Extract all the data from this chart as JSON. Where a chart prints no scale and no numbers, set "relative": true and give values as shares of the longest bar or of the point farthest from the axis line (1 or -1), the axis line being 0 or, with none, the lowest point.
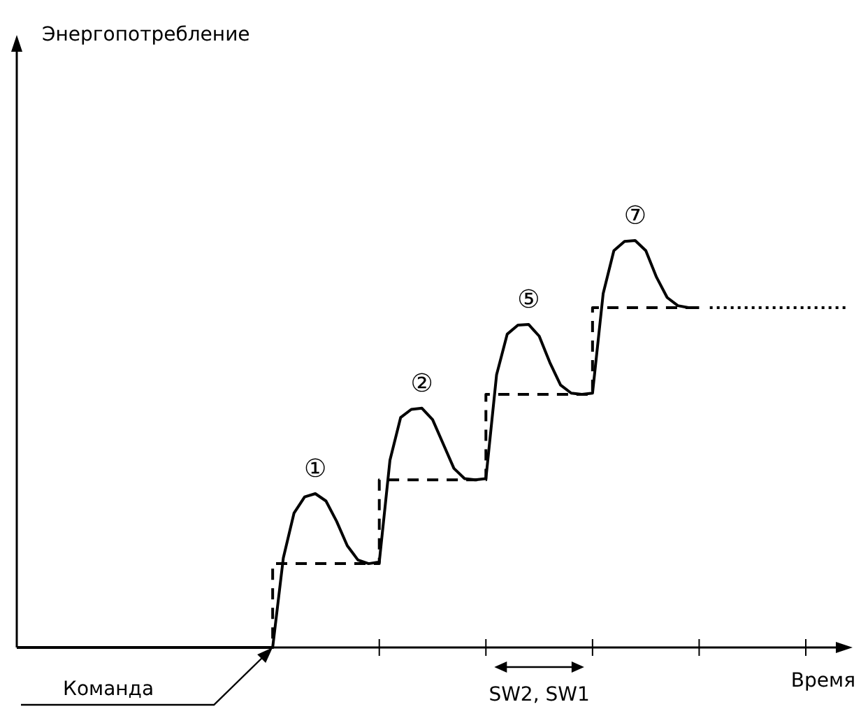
{
  "chart_data": {
    "type": "line",
    "relative": true,
    "xlabel": "Время",
    "categories": [
      null,
      null,
      null,
      null,
      null,
      null,
      null,
      null,
      null,
      null,
      null,
      null,
      null,
      null,
      null,
      null,
      null,
      null,
      null,
      null,
      null,
      null,
      null,
      null,
      null,
      null,
      null,
      null,
      null,
      null,
      null,
      null,
      null,
      null,
      null,
      null,
      null,
      null,
      null,
      null,
      null,
      null,
      null,
      null,
      null,
      null,
      null,
      null,
      null,
      null,
      null,
      null,
      null,
      null,
      null,
      null,
      null,
      null,
      null,
      null,
      null,
      null,
      null,
      null,
      null,
      null,
      null,
      null,
      null,
      null,
      null,
      null,
      null,
      null,
      null,
      null,
      null,
      null,
      null
    ],
    "series": [
      {
        "color": "#000000",
        "line_style": "solid",
        "values": [
          0,
          0,
          0,
          0,
          0,
          0,
          0,
          0,
          0,
          0,
          0,
          0,
          0,
          0,
          0,
          0,
          0,
          0,
          0,
          0,
          0,
          0,
          0,
          0,
          0,
          0.22,
          0.33,
          0.37,
          0.378,
          0.36,
          0.31,
          0.25,
          0.215,
          0.206,
          0.21,
          0.46,
          0.565,
          0.585,
          0.588,
          0.56,
          0.5,
          0.44,
          0.415,
          0.412,
          0.415,
          0.67,
          0.77,
          0.792,
          0.794,
          0.765,
          0.7,
          0.645,
          0.625,
          0.622,
          0.625,
          0.87,
          0.975,
          0.998,
          1,
          0.975,
          0.91,
          0.86,
          0.84,
          0.835,
          0.835,
          null,
          null,
          null,
          null,
          null,
          null,
          null,
          null,
          null,
          null,
          null,
          null,
          null,
          null
        ]
      },
      {
        "type": "step",
        "color": "#000000",
        "line_style": "dashed",
        "values": [
          null,
          null,
          null,
          null,
          null,
          null,
          null,
          null,
          null,
          null,
          null,
          null,
          null,
          null,
          null,
          null,
          null,
          null,
          null,
          null,
          null,
          null,
          null,
          0,
          0.206,
          0.206,
          0.206,
          0.206,
          0.206,
          0.206,
          0.206,
          0.206,
          0.206,
          0.206,
          0.412,
          0.412,
          0.412,
          0.412,
          0.412,
          0.412,
          0.412,
          0.412,
          0.412,
          0.412,
          0.622,
          0.622,
          0.622,
          0.622,
          0.622,
          0.622,
          0.622,
          0.622,
          0.622,
          0.622,
          0.835,
          0.835,
          0.835,
          0.835,
          0.835,
          0.835,
          0.835,
          0.835,
          0.835,
          0.835,
          0.835,
          null,
          null,
          null,
          null,
          null,
          null,
          null,
          null,
          null,
          null,
          null,
          null,
          null,
          null
        ]
      },
      {
        "color": "#000000",
        "line_style": "dotted",
        "values": [
          null,
          null,
          null,
          null,
          null,
          null,
          null,
          null,
          null,
          null,
          null,
          null,
          null,
          null,
          null,
          null,
          null,
          null,
          null,
          null,
          null,
          null,
          null,
          null,
          null,
          null,
          null,
          null,
          null,
          null,
          null,
          null,
          null,
          null,
          null,
          null,
          null,
          null,
          null,
          null,
          null,
          null,
          null,
          null,
          null,
          null,
          null,
          null,
          null,
          null,
          null,
          null,
          null,
          null,
          null,
          null,
          null,
          null,
          null,
          null,
          null,
          null,
          null,
          null,
          null,
          0.835,
          0.835,
          0.835,
          0.835,
          0.835,
          0.835,
          0.835,
          0.835,
          0.835,
          0.835,
          0.835,
          0.835,
          0.835,
          0.835
        ]
      }
    ],
    "annotations": [
      "①",
      "②",
      "⑤",
      "⑦",
      "Команда",
      "SW2, SW1",
      "Энергопотребление"
    ]
  }
}
